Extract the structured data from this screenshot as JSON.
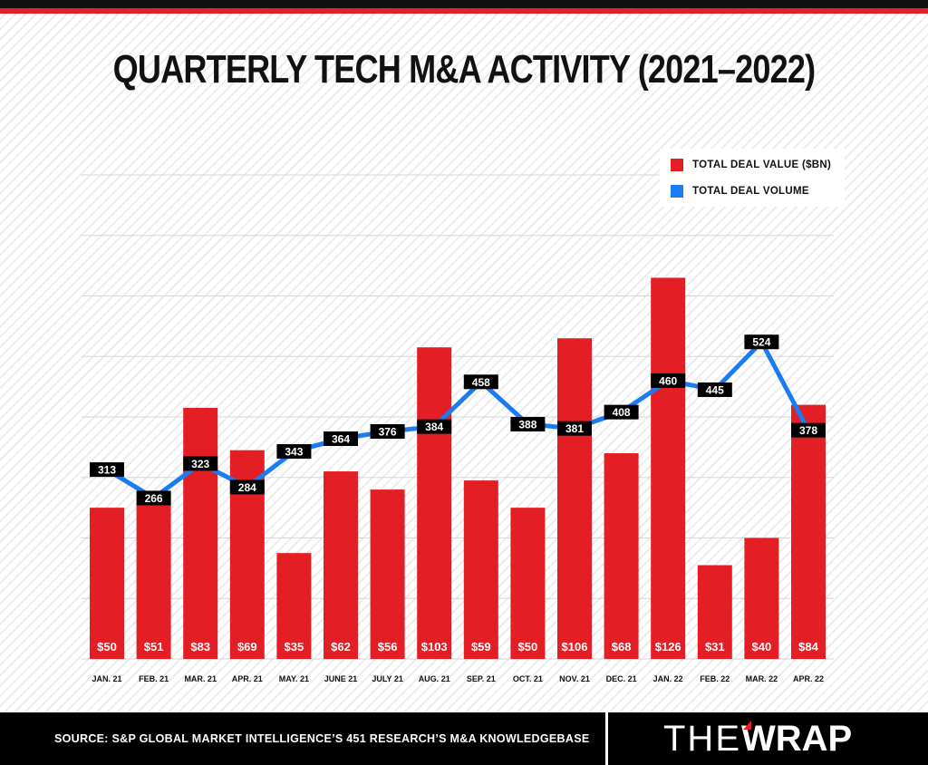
{
  "title": "QUARTERLY TECH M&A ACTIVITY (2021–2022)",
  "legend": {
    "value_label": "TOTAL DEAL VALUE ($BN)",
    "volume_label": "TOTAL DEAL VOLUME"
  },
  "footer": {
    "source": "SOURCE: S&P GLOBAL MARKET INTELLIGENCE’S 451 RESEARCH’S M&A KNOWLEDGEBASE",
    "brand_the": "THE",
    "brand_wrap": "WRAP"
  },
  "colors": {
    "bar": "#e31e24",
    "line": "#1a7cf0",
    "label_box": "#000000",
    "gridline": "#d6d6d6"
  },
  "chart_data": {
    "type": "bar",
    "title": "QUARTERLY TECH M&A ACTIVITY (2021–2022)",
    "categories": [
      "JAN. 21",
      "FEB. 21",
      "MAR. 21",
      "APR. 21",
      "MAY. 21",
      "JUNE 21",
      "JULY 21",
      "AUG. 21",
      "SEP. 21",
      "OCT. 21",
      "NOV. 21",
      "DEC. 21",
      "JAN. 22",
      "FEB. 22",
      "MAR. 22",
      "APR. 22"
    ],
    "series": [
      {
        "name": "TOTAL DEAL VALUE ($BN)",
        "kind": "bar",
        "values": [
          50,
          51,
          83,
          69,
          35,
          62,
          56,
          103,
          59,
          50,
          106,
          68,
          126,
          31,
          40,
          84
        ],
        "labels": [
          "$50",
          "$51",
          "$83",
          "$69",
          "$35",
          "$62",
          "$56",
          "$103",
          "$59",
          "$50",
          "$106",
          "$68",
          "$126",
          "$31",
          "$40",
          "$84"
        ]
      },
      {
        "name": "TOTAL DEAL VOLUME",
        "kind": "line",
        "values": [
          313,
          266,
          323,
          284,
          343,
          364,
          376,
          384,
          458,
          388,
          381,
          408,
          460,
          445,
          524,
          378
        ],
        "labels": [
          "313",
          "266",
          "323",
          "284",
          "343",
          "364",
          "376",
          "384",
          "458",
          "388",
          "381",
          "408",
          "460",
          "445",
          "524",
          "378"
        ]
      }
    ],
    "ylim_value": [
      0,
      160
    ],
    "ylim_volume": [
      0,
      800
    ],
    "grid": true,
    "legend_position": "top-right"
  }
}
